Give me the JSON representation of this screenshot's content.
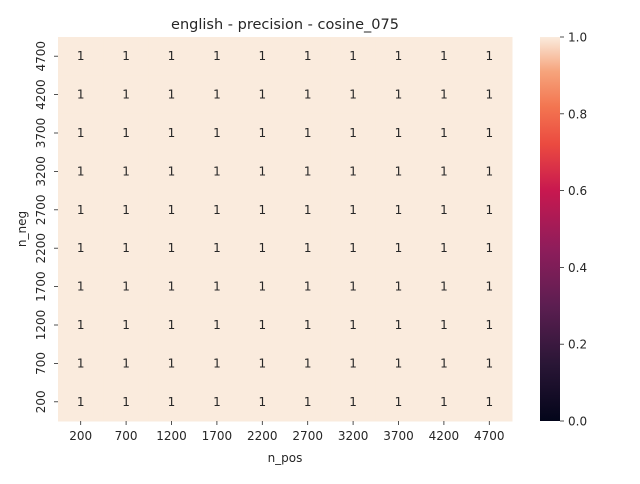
{
  "chart_data": {
    "type": "heatmap",
    "title": "english - precision - cosine_075",
    "xlabel": "n_pos",
    "ylabel": "n_neg",
    "x_categories": [
      "200",
      "700",
      "1200",
      "1700",
      "2200",
      "2700",
      "3200",
      "3700",
      "4200",
      "4700"
    ],
    "y_categories": [
      "4700",
      "4200",
      "3700",
      "3200",
      "2700",
      "2200",
      "1700",
      "1200",
      "700",
      "200"
    ],
    "values": [
      [
        1,
        1,
        1,
        1,
        1,
        1,
        1,
        1,
        1,
        1
      ],
      [
        1,
        1,
        1,
        1,
        1,
        1,
        1,
        1,
        1,
        1
      ],
      [
        1,
        1,
        1,
        1,
        1,
        1,
        1,
        1,
        1,
        1
      ],
      [
        1,
        1,
        1,
        1,
        1,
        1,
        1,
        1,
        1,
        1
      ],
      [
        1,
        1,
        1,
        1,
        1,
        1,
        1,
        1,
        1,
        1
      ],
      [
        1,
        1,
        1,
        1,
        1,
        1,
        1,
        1,
        1,
        1
      ],
      [
        1,
        1,
        1,
        1,
        1,
        1,
        1,
        1,
        1,
        1
      ],
      [
        1,
        1,
        1,
        1,
        1,
        1,
        1,
        1,
        1,
        1
      ],
      [
        1,
        1,
        1,
        1,
        1,
        1,
        1,
        1,
        1,
        1
      ],
      [
        1,
        1,
        1,
        1,
        1,
        1,
        1,
        1,
        1,
        1
      ]
    ],
    "colorbar": {
      "range": [
        0.0,
        1.0
      ],
      "ticks": [
        "0.0",
        "0.2",
        "0.4",
        "0.6",
        "0.8",
        "1.0"
      ],
      "colormap": "rocket"
    },
    "cell_color": "#faebdd",
    "grid": false
  }
}
